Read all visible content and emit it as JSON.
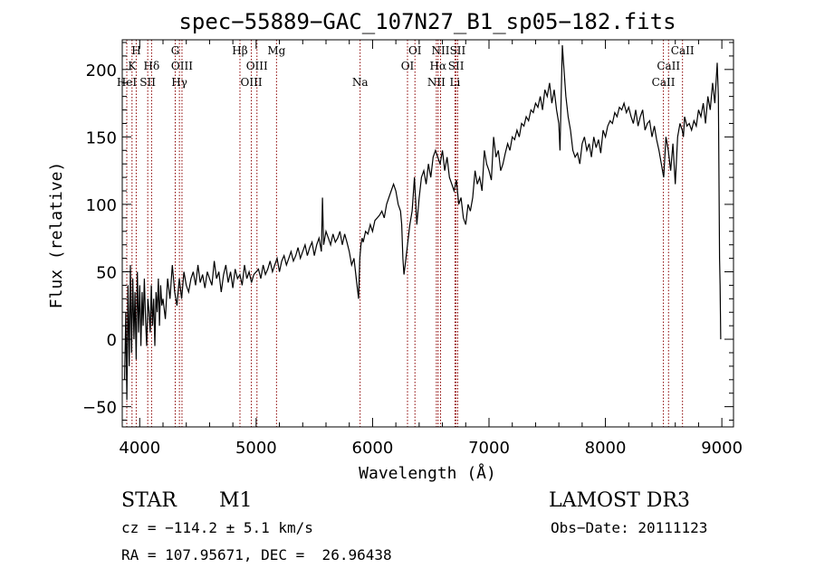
{
  "chart_data": {
    "type": "line",
    "title": "spec−55889−GAC_107N27_B1_sp05−182.fits",
    "xlabel": "Wavelength (Å)",
    "ylabel": "Flux (relative)",
    "xlim": [
      3850,
      9100
    ],
    "ylim": [
      -65,
      222
    ],
    "x_ticks": [
      4000,
      5000,
      6000,
      7000,
      8000,
      9000
    ],
    "y_ticks": [
      -50,
      0,
      50,
      100,
      150,
      200
    ],
    "y_tick_labels": [
      "−50",
      "0",
      "50",
      "100",
      "150",
      "200"
    ],
    "series": [
      {
        "name": "flux",
        "x": [
          3870,
          3880,
          3890,
          3900,
          3910,
          3920,
          3930,
          3940,
          3950,
          3960,
          3970,
          3980,
          3990,
          4000,
          4010,
          4020,
          4030,
          4040,
          4050,
          4060,
          4070,
          4080,
          4090,
          4100,
          4110,
          4120,
          4130,
          4140,
          4150,
          4160,
          4170,
          4180,
          4190,
          4200,
          4220,
          4240,
          4260,
          4280,
          4300,
          4320,
          4340,
          4360,
          4380,
          4400,
          4420,
          4440,
          4460,
          4480,
          4500,
          4520,
          4540,
          4560,
          4580,
          4600,
          4620,
          4640,
          4660,
          4680,
          4700,
          4720,
          4740,
          4760,
          4780,
          4800,
          4820,
          4840,
          4860,
          4880,
          4900,
          4920,
          4940,
          4960,
          4980,
          5000,
          5020,
          5040,
          5060,
          5080,
          5100,
          5120,
          5140,
          5160,
          5180,
          5200,
          5220,
          5240,
          5260,
          5280,
          5300,
          5320,
          5340,
          5360,
          5380,
          5400,
          5420,
          5440,
          5460,
          5480,
          5500,
          5520,
          5540,
          5560,
          5570,
          5580,
          5600,
          5620,
          5640,
          5660,
          5680,
          5700,
          5720,
          5740,
          5760,
          5780,
          5800,
          5820,
          5840,
          5860,
          5880,
          5890,
          5900,
          5910,
          5920,
          5940,
          5960,
          5980,
          6000,
          6020,
          6040,
          6060,
          6080,
          6100,
          6120,
          6140,
          6160,
          6180,
          6200,
          6220,
          6240,
          6250,
          6260,
          6270,
          6280,
          6300,
          6320,
          6340,
          6360,
          6380,
          6400,
          6420,
          6440,
          6460,
          6480,
          6500,
          6520,
          6540,
          6560,
          6580,
          6600,
          6620,
          6640,
          6660,
          6680,
          6700,
          6720,
          6740,
          6760,
          6780,
          6800,
          6820,
          6840,
          6860,
          6880,
          6900,
          6920,
          6940,
          6960,
          6980,
          7000,
          7020,
          7040,
          7060,
          7080,
          7100,
          7120,
          7140,
          7160,
          7180,
          7200,
          7220,
          7240,
          7260,
          7280,
          7300,
          7320,
          7340,
          7360,
          7380,
          7400,
          7420,
          7440,
          7460,
          7480,
          7500,
          7520,
          7540,
          7560,
          7580,
          7600,
          7610,
          7620,
          7630,
          7640,
          7660,
          7680,
          7700,
          7720,
          7740,
          7760,
          7780,
          7800,
          7820,
          7840,
          7860,
          7880,
          7900,
          7920,
          7940,
          7960,
          7980,
          8000,
          8020,
          8040,
          8060,
          8080,
          8100,
          8120,
          8140,
          8160,
          8180,
          8200,
          8220,
          8240,
          8260,
          8280,
          8300,
          8320,
          8340,
          8360,
          8380,
          8400,
          8420,
          8440,
          8460,
          8480,
          8500,
          8520,
          8540,
          8560,
          8580,
          8600,
          8620,
          8640,
          8660,
          8670,
          8680,
          8700,
          8720,
          8740,
          8760,
          8780,
          8800,
          8820,
          8840,
          8860,
          8880,
          8900,
          8920,
          8940,
          8960,
          8970,
          8980,
          8985,
          8990
        ],
        "y": [
          -30,
          20,
          -45,
          40,
          -20,
          55,
          -10,
          45,
          0,
          35,
          -15,
          50,
          5,
          40,
          -5,
          35,
          10,
          45,
          15,
          -5,
          30,
          20,
          5,
          40,
          10,
          30,
          -5,
          35,
          20,
          45,
          10,
          40,
          25,
          30,
          15,
          45,
          30,
          55,
          35,
          25,
          45,
          30,
          50,
          40,
          35,
          45,
          50,
          40,
          55,
          42,
          48,
          38,
          50,
          45,
          40,
          58,
          45,
          50,
          35,
          48,
          55,
          42,
          50,
          38,
          52,
          45,
          48,
          40,
          55,
          45,
          50,
          42,
          48,
          50,
          52,
          45,
          55,
          48,
          52,
          58,
          50,
          55,
          60,
          50,
          58,
          62,
          55,
          60,
          65,
          58,
          62,
          68,
          60,
          65,
          70,
          62,
          68,
          72,
          62,
          70,
          75,
          65,
          105,
          70,
          80,
          75,
          70,
          78,
          72,
          75,
          80,
          70,
          78,
          72,
          65,
          55,
          60,
          45,
          30,
          60,
          70,
          75,
          72,
          80,
          78,
          85,
          80,
          88,
          90,
          92,
          95,
          90,
          100,
          105,
          110,
          115,
          110,
          100,
          95,
          85,
          60,
          48,
          55,
          70,
          85,
          95,
          120,
          85,
          105,
          120,
          125,
          115,
          130,
          120,
          135,
          140,
          135,
          130,
          140,
          125,
          135,
          120,
          115,
          110,
          118,
          100,
          105,
          90,
          85,
          100,
          95,
          105,
          125,
          115,
          120,
          110,
          140,
          130,
          125,
          118,
          150,
          135,
          140,
          125,
          130,
          138,
          145,
          140,
          150,
          148,
          155,
          150,
          160,
          158,
          165,
          162,
          170,
          168,
          175,
          172,
          180,
          170,
          185,
          180,
          190,
          175,
          185,
          170,
          160,
          140,
          180,
          218,
          205,
          180,
          165,
          155,
          140,
          135,
          138,
          130,
          145,
          150,
          140,
          145,
          135,
          150,
          142,
          148,
          138,
          155,
          150,
          158,
          162,
          160,
          168,
          165,
          172,
          170,
          175,
          168,
          172,
          165,
          160,
          170,
          158,
          165,
          170,
          155,
          160,
          162,
          150,
          158,
          148,
          140,
          130,
          120,
          150,
          140,
          125,
          145,
          115,
          150,
          160,
          155,
          150,
          165,
          158,
          160,
          155,
          162,
          158,
          170,
          165,
          175,
          160,
          180,
          170,
          190,
          175,
          205,
          180,
          60,
          40,
          0
        ]
      }
    ],
    "emission_lines": [
      {
        "label": "H",
        "wavelength": 3970,
        "row": 1
      },
      {
        "label": "K",
        "wavelength": 3934,
        "row": 2
      },
      {
        "label": "HeI",
        "wavelength": 3889,
        "row": 3
      },
      {
        "label": "SII",
        "wavelength": 4069,
        "row": 3
      },
      {
        "label": "Hδ",
        "wavelength": 4102,
        "row": 2
      },
      {
        "label": "G",
        "wavelength": 4305,
        "row": 1
      },
      {
        "label": "OIII",
        "wavelength": 4363,
        "row": 2
      },
      {
        "label": "Hγ",
        "wavelength": 4341,
        "row": 3
      },
      {
        "label": "Hβ",
        "wavelength": 4861,
        "row": 1
      },
      {
        "label": "OIII",
        "wavelength": 5007,
        "row": 2
      },
      {
        "label": "OIII",
        "wavelength": 4959,
        "row": 3
      },
      {
        "label": "Mg",
        "wavelength": 5175,
        "row": 1
      },
      {
        "label": "Na",
        "wavelength": 5893,
        "row": 3
      },
      {
        "label": "OI",
        "wavelength": 6364,
        "row": 1
      },
      {
        "label": "OI",
        "wavelength": 6300,
        "row": 2
      },
      {
        "label": "NII",
        "wavelength": 6584,
        "row": 1
      },
      {
        "label": "SII",
        "wavelength": 6731,
        "row": 1
      },
      {
        "label": "Hα",
        "wavelength": 6563,
        "row": 2
      },
      {
        "label": "SII",
        "wavelength": 6717,
        "row": 2
      },
      {
        "label": "NII",
        "wavelength": 6548,
        "row": 3
      },
      {
        "label": "Li",
        "wavelength": 6708,
        "row": 3
      },
      {
        "label": "CaII",
        "wavelength": 8662,
        "row": 1
      },
      {
        "label": "CaII",
        "wavelength": 8542,
        "row": 2
      },
      {
        "label": "CaII",
        "wavelength": 8498,
        "row": 3
      }
    ],
    "line_color": "#000000",
    "marker_color": "#8b0000"
  },
  "info": {
    "object_class": "STAR",
    "subclass": "M1",
    "survey": "LAMOST DR3",
    "redshift": "cz = −114.2 ± 5.1 km/s",
    "obs_date": "Obs−Date: 20111123",
    "coords": "RA = 107.95671, DEC =  26.96438"
  }
}
